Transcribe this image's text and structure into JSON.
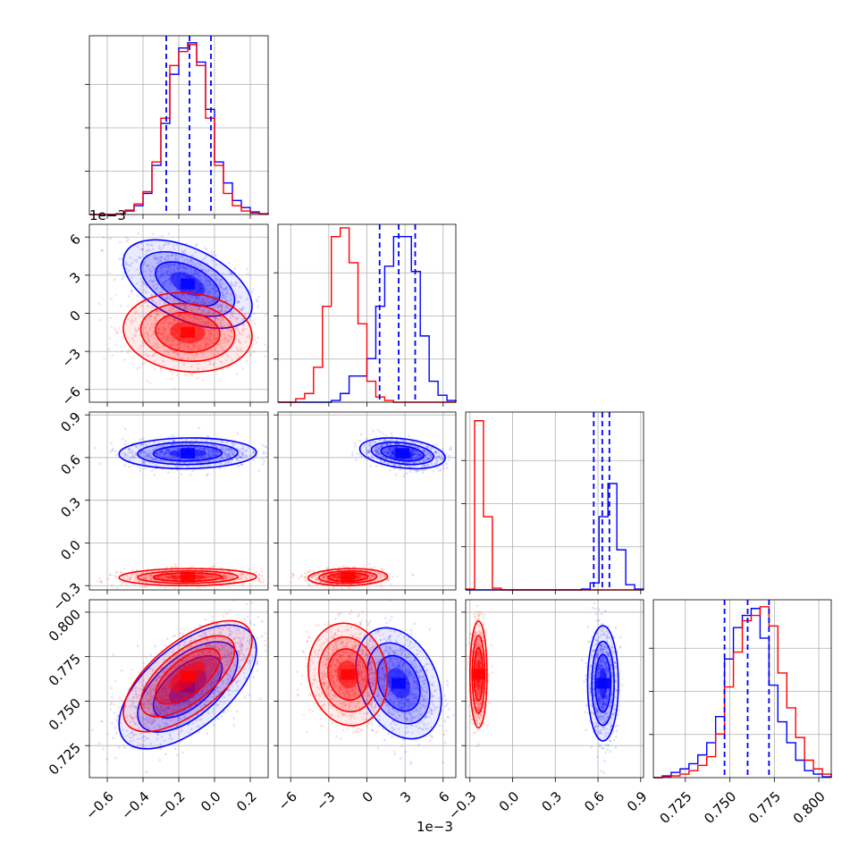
{
  "chart_data": {
    "type": "corner",
    "title": "",
    "colors": {
      "blue": "#0000ff",
      "red": "#ff0000"
    },
    "series": [
      {
        "name": "",
        "color": "#0000ff"
      },
      {
        "name": "",
        "color": "#ff0000"
      }
    ],
    "params": [
      {
        "range": [
          -0.7,
          0.3
        ],
        "ticks": [
          -0.6,
          -0.4,
          -0.2,
          0.0,
          0.2
        ],
        "tick_labels": [
          "−0.6",
          "−0.4",
          "−0.2",
          "0.0",
          "0.2"
        ],
        "offset_label": ""
      },
      {
        "range": [
          -7,
          7
        ],
        "ticks": [
          -6,
          -3,
          0,
          3,
          6
        ],
        "tick_labels": [
          "−6",
          "−3",
          "0",
          "3",
          "6"
        ],
        "offset_label": "1e−3"
      },
      {
        "range": [
          -0.33,
          0.92
        ],
        "ticks": [
          -0.3,
          0.0,
          0.3,
          0.6,
          0.9
        ],
        "tick_labels": [
          "−0.3",
          "0.0",
          "0.3",
          "0.6",
          "0.9"
        ],
        "offset_label": ""
      },
      {
        "range": [
          0.707,
          0.807
        ],
        "ticks": [
          0.725,
          0.75,
          0.775,
          0.8
        ],
        "tick_labels": [
          "0.725",
          "0.750",
          "0.775",
          "0.800"
        ],
        "offset_label": ""
      }
    ],
    "quantiles": [
      [
        -0.27,
        -0.14,
        -0.02
      ],
      [
        1.0,
        2.5,
        3.8
      ],
      [
        0.57,
        0.63,
        0.68
      ],
      [
        0.747,
        0.76,
        0.772
      ]
    ],
    "histograms": [
      {
        "bins": [
          -0.7,
          -0.65,
          -0.6,
          -0.55,
          -0.5,
          -0.45,
          -0.4,
          -0.35,
          -0.3,
          -0.25,
          -0.2,
          -0.15,
          -0.1,
          -0.05,
          0.0,
          0.05,
          0.1,
          0.15,
          0.2,
          0.25,
          0.3
        ],
        "blue": [
          0,
          0,
          0,
          0.005,
          0.02,
          0.05,
          0.12,
          0.28,
          0.52,
          0.8,
          0.95,
          0.98,
          0.87,
          0.6,
          0.3,
          0.18,
          0.08,
          0.04,
          0.015,
          0.005
        ],
        "red": [
          0,
          0,
          0,
          0.005,
          0.025,
          0.06,
          0.13,
          0.3,
          0.55,
          0.85,
          0.93,
          0.97,
          0.85,
          0.55,
          0.28,
          0.12,
          0.05,
          0.02,
          0.008,
          0.003
        ]
      },
      {
        "bins": [
          -7,
          -6.3,
          -5.6,
          -4.9,
          -4.2,
          -3.5,
          -2.8,
          -2.1,
          -1.4,
          -0.7,
          0.0,
          0.7,
          1.4,
          2.1,
          2.8,
          3.5,
          4.2,
          4.9,
          5.6,
          6.3,
          7.0
        ],
        "blue": [
          0,
          0,
          0,
          0,
          0,
          0,
          0.01,
          0.05,
          0.15,
          0.15,
          0.25,
          0.55,
          0.78,
          0.95,
          0.95,
          0.75,
          0.38,
          0.12,
          0.04,
          0.01
        ],
        "red": [
          0,
          0,
          0.02,
          0.05,
          0.2,
          0.55,
          0.95,
          1.0,
          0.8,
          0.45,
          0.12,
          0.03,
          0.01,
          0,
          0,
          0,
          0,
          0,
          0,
          0
        ]
      },
      {
        "bins": [
          -0.33,
          -0.2675,
          -0.205,
          -0.1425,
          -0.08,
          -0.0175,
          0.045,
          0.1075,
          0.17,
          0.2325,
          0.295,
          0.3575,
          0.42,
          0.4825,
          0.545,
          0.6075,
          0.67,
          0.7325,
          0.795,
          0.8575,
          0.92
        ],
        "blue": [
          0,
          0,
          0,
          0,
          0,
          0,
          0,
          0,
          0,
          0,
          0,
          0,
          0,
          0.005,
          0.04,
          0.42,
          0.61,
          0.23,
          0.03,
          0.005
        ],
        "red": [
          0.005,
          0.97,
          0.42,
          0.01,
          0,
          0,
          0,
          0,
          0,
          0,
          0,
          0,
          0,
          0,
          0,
          0,
          0,
          0,
          0,
          0
        ]
      },
      {
        "bins": [
          0.707,
          0.712,
          0.717,
          0.722,
          0.727,
          0.732,
          0.737,
          0.742,
          0.747,
          0.752,
          0.757,
          0.762,
          0.767,
          0.772,
          0.777,
          0.782,
          0.787,
          0.792,
          0.797,
          0.802,
          0.807
        ],
        "blue": [
          0,
          0.01,
          0.03,
          0.05,
          0.08,
          0.13,
          0.2,
          0.35,
          0.68,
          0.86,
          0.93,
          0.97,
          0.8,
          0.53,
          0.32,
          0.2,
          0.1,
          0.04,
          0.02,
          0.005
        ],
        "red": [
          0,
          0.005,
          0.01,
          0.02,
          0.04,
          0.07,
          0.12,
          0.25,
          0.52,
          0.72,
          0.9,
          0.93,
          0.98,
          0.87,
          0.6,
          0.4,
          0.23,
          0.1,
          0.05,
          0.02
        ]
      }
    ],
    "joint": [
      {
        "row": 1,
        "col": 0,
        "blue": {
          "mean": [
            -0.15,
            2.3
          ],
          "sd": [
            0.15,
            1.45
          ],
          "rho": -0.5
        },
        "red": {
          "mean": [
            -0.15,
            -1.5
          ],
          "sd": [
            0.15,
            1.3
          ],
          "rho": -0.1
        }
      },
      {
        "row": 2,
        "col": 0,
        "blue": {
          "mean": [
            -0.15,
            0.63
          ],
          "sd": [
            0.16,
            0.045
          ],
          "rho": 0.05
        },
        "red": {
          "mean": [
            -0.15,
            -0.24
          ],
          "sd": [
            0.16,
            0.025
          ],
          "rho": 0.05
        }
      },
      {
        "row": 2,
        "col": 1,
        "blue": {
          "mean": [
            2.8,
            0.63
          ],
          "sd": [
            1.4,
            0.045
          ],
          "rho": -0.3
        },
        "red": {
          "mean": [
            -1.5,
            -0.24
          ],
          "sd": [
            1.3,
            0.025
          ],
          "rho": 0.1
        }
      },
      {
        "row": 3,
        "col": 0,
        "blue": {
          "mean": [
            -0.15,
            0.758
          ],
          "sd": [
            0.16,
            0.0145
          ],
          "rho": 0.6
        },
        "red": {
          "mean": [
            -0.15,
            0.764
          ],
          "sd": [
            0.15,
            0.013
          ],
          "rho": 0.65
        }
      },
      {
        "row": 3,
        "col": 1,
        "blue": {
          "mean": [
            2.5,
            0.76
          ],
          "sd": [
            1.4,
            0.013
          ],
          "rho": -0.3
        },
        "red": {
          "mean": [
            -1.5,
            0.765
          ],
          "sd": [
            1.3,
            0.012
          ],
          "rho": -0.1
        }
      },
      {
        "row": 3,
        "col": 2,
        "blue": {
          "mean": [
            0.635,
            0.76
          ],
          "sd": [
            0.045,
            0.0135
          ],
          "rho": 0.0
        },
        "red": {
          "mean": [
            -0.24,
            0.765
          ],
          "sd": [
            0.025,
            0.0125
          ],
          "rho": 0.0
        }
      }
    ]
  }
}
